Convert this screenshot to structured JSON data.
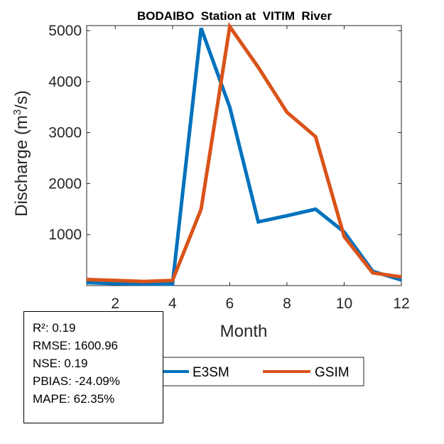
{
  "chart_data": {
    "type": "line",
    "title": "BODAIBO  Station at  VITIM  River",
    "xlabel": "Month",
    "ylabel_prefix": "Discharge (m",
    "ylabel_sup": "3",
    "ylabel_suffix": "/s)",
    "xlim": [
      1,
      12
    ],
    "ylim": [
      0,
      5100
    ],
    "xticks": [
      2,
      4,
      6,
      8,
      10,
      12
    ],
    "yticks": [
      1000,
      2000,
      3000,
      4000,
      5000
    ],
    "x": [
      1,
      2,
      3,
      4,
      5,
      6,
      7,
      8,
      9,
      10,
      11,
      12
    ],
    "series": [
      {
        "name": "E3SM",
        "color": "#0072BD",
        "values": [
          60,
          40,
          30,
          30,
          5050,
          3500,
          1250,
          1370,
          1500,
          1050,
          280,
          110
        ]
      },
      {
        "name": "GSIM",
        "color": "#D95319",
        "values": [
          120,
          100,
          80,
          100,
          1500,
          5080,
          4280,
          3400,
          2920,
          960,
          250,
          170
        ]
      }
    ],
    "legend": {
      "position": "bottom",
      "orientation": "horizontal"
    }
  },
  "stats": [
    "R²: 0.19",
    "RMSE: 1600.96",
    "NSE: 0.19",
    "PBIAS: -24.09%",
    "MAPE: 62.35%"
  ]
}
